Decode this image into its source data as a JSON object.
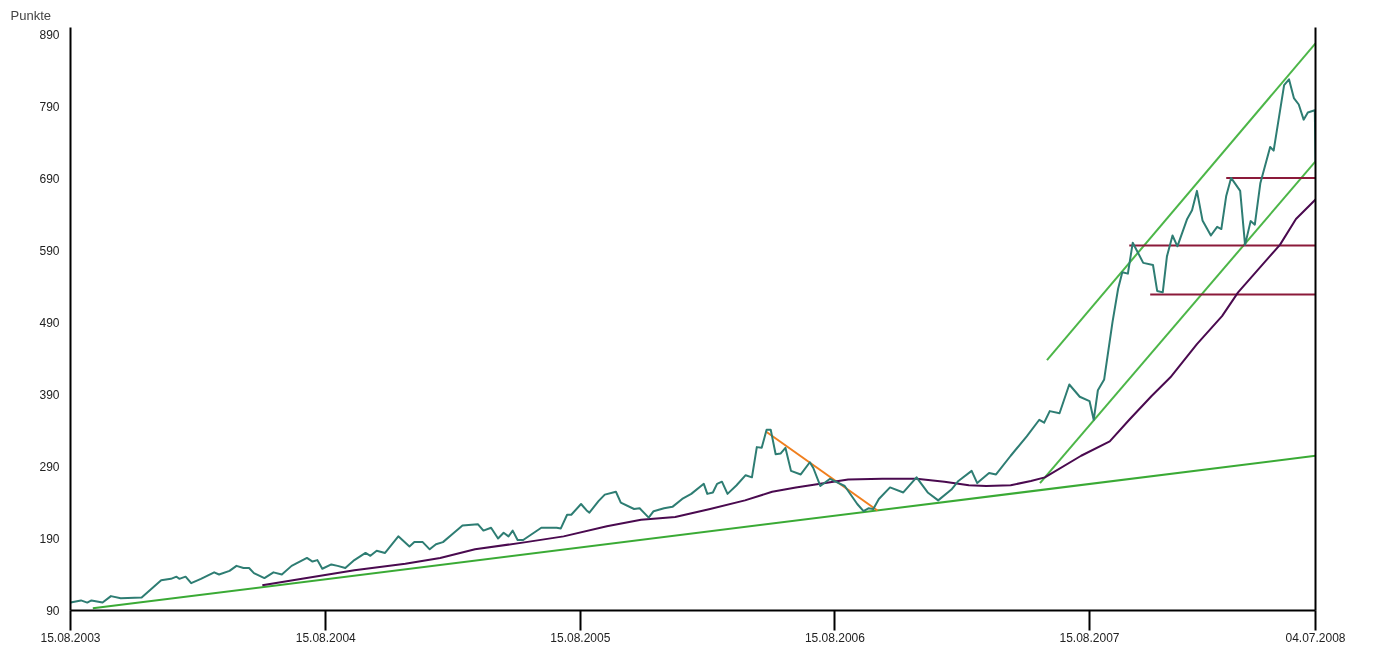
{
  "chart_data": {
    "type": "line",
    "ylabel": "Punkte",
    "xlim": [
      "2003-08-15",
      "2008-07-04"
    ],
    "ylim": [
      90,
      900
    ],
    "xticks": [
      {
        "value": "2003-08-15",
        "label": "15.08.2003"
      },
      {
        "value": "2004-08-15",
        "label": "15.08.2004"
      },
      {
        "value": "2005-08-15",
        "label": "15.08.2005"
      },
      {
        "value": "2006-08-15",
        "label": "15.08.2006"
      },
      {
        "value": "2007-08-15",
        "label": "15.08.2007"
      },
      {
        "value": "2008-07-04",
        "label": "04.07.2008"
      }
    ],
    "yticks": [
      90,
      190,
      290,
      390,
      490,
      590,
      690,
      790,
      890
    ],
    "grid": false,
    "marker": "none",
    "line_style": "solid",
    "series": [
      {
        "color": "#3aaa35",
        "x": [
          "2003-09-16",
          "2008-07-04"
        ],
        "values": [
          93,
          305
        ]
      },
      {
        "color": "#4cb648",
        "x": [
          "2007-06-15",
          "2008-07-04"
        ],
        "values": [
          438,
          878
        ]
      },
      {
        "color": "#4cb648",
        "x": [
          "2007-06-05",
          "2008-07-04"
        ],
        "values": [
          267,
          714
        ]
      },
      {
        "color": "#f07f1e",
        "x": [
          "2006-05-09",
          "2006-10-15"
        ],
        "values": [
          338,
          229
        ]
      },
      {
        "color": "#8b1a3a",
        "x": [
          "2008-02-27",
          "2008-07-04"
        ],
        "values": [
          691,
          691
        ]
      },
      {
        "color": "#8b1a3a",
        "x": [
          "2007-10-11",
          "2008-07-04"
        ],
        "values": [
          597,
          597
        ]
      },
      {
        "color": "#8b1a3a",
        "x": [
          "2007-11-10",
          "2008-07-04"
        ],
        "values": [
          529,
          529
        ]
      },
      {
        "color": "#4a0a4f",
        "x": [
          "2004-05-16",
          "2004-07-12",
          "2004-09-25",
          "2004-12-07",
          "2005-01-26",
          "2005-03-17",
          "2005-05-29",
          "2005-07-22",
          "2005-09-22",
          "2005-11-10",
          "2005-12-29",
          "2006-02-17",
          "2006-04-08",
          "2006-05-17",
          "2006-06-20",
          "2006-07-25",
          "2006-09-03",
          "2006-10-22",
          "2006-12-10",
          "2007-01-19",
          "2007-02-23",
          "2007-03-20",
          "2007-04-24",
          "2007-05-23",
          "2007-06-12",
          "2007-08-03",
          "2007-09-13",
          "2007-10-11",
          "2007-11-12",
          "2007-12-09",
          "2008-01-16",
          "2008-02-21",
          "2008-03-15",
          "2008-04-12",
          "2008-05-14",
          "2008-06-06",
          "2008-07-04"
        ],
        "values": [
          125,
          134,
          146,
          155,
          163,
          175,
          185,
          193,
          207,
          216,
          220,
          231,
          243,
          255,
          261,
          266,
          272,
          273,
          273,
          269,
          264,
          263,
          264,
          270,
          275,
          305,
          325,
          355,
          388,
          414,
          460,
          499,
          532,
          563,
          598,
          634,
          661
        ]
      },
      {
        "color": "#2e7d73",
        "x": [
          "2003-08-15",
          "2003-08-30",
          "2003-09-08",
          "2003-09-14",
          "2003-09-30",
          "2003-10-12",
          "2003-10-26",
          "2003-11-25",
          "2003-12-23",
          "2004-01-06",
          "2004-01-14",
          "2004-01-18",
          "2004-01-27",
          "2004-02-04",
          "2004-02-18",
          "2004-03-08",
          "2004-03-15",
          "2004-03-30",
          "2004-04-09",
          "2004-04-19",
          "2004-04-27",
          "2004-05-04",
          "2004-05-19",
          "2004-06-01",
          "2004-06-13",
          "2004-06-27",
          "2004-07-19",
          "2004-07-27",
          "2004-08-03",
          "2004-08-10",
          "2004-08-23",
          "2004-09-01",
          "2004-09-12",
          "2004-09-25",
          "2004-10-11",
          "2004-10-18",
          "2004-10-27",
          "2004-11-08",
          "2004-11-27",
          "2004-12-13",
          "2004-12-20",
          "2005-01-01",
          "2005-01-11",
          "2005-01-20",
          "2005-01-30",
          "2005-02-11",
          "2005-02-27",
          "2005-03-21",
          "2005-03-29",
          "2005-04-09",
          "2005-04-19",
          "2005-04-27",
          "2005-05-04",
          "2005-05-10",
          "2005-05-17",
          "2005-05-25",
          "2005-06-20",
          "2005-07-12",
          "2005-07-18",
          "2005-07-27",
          "2005-08-02",
          "2005-08-16",
          "2005-08-24",
          "2005-08-28",
          "2005-09-10",
          "2005-09-19",
          "2005-10-05",
          "2005-10-12",
          "2005-10-31",
          "2005-11-08",
          "2005-11-21",
          "2005-11-28",
          "2005-12-13",
          "2005-12-25",
          "2006-01-08",
          "2006-01-21",
          "2006-02-08",
          "2006-02-13",
          "2006-02-21",
          "2006-02-27",
          "2006-03-06",
          "2006-03-14",
          "2006-03-27",
          "2006-04-09",
          "2006-04-18",
          "2006-04-25",
          "2006-05-02",
          "2006-05-09",
          "2006-05-15",
          "2006-05-22",
          "2006-05-29",
          "2006-06-05",
          "2006-06-13",
          "2006-06-27",
          "2006-07-10",
          "2006-07-15",
          "2006-07-25",
          "2006-08-08",
          "2006-08-16",
          "2006-08-29",
          "2006-09-16",
          "2006-09-25",
          "2006-10-02",
          "2006-10-09",
          "2006-10-17",
          "2006-11-02",
          "2006-11-21",
          "2006-12-10",
          "2006-12-26",
          "2007-01-10",
          "2007-01-29",
          "2007-02-08",
          "2007-02-27",
          "2007-03-07",
          "2007-03-24",
          "2007-04-03",
          "2007-04-24",
          "2007-05-17",
          "2007-06-04",
          "2007-06-11",
          "2007-06-19",
          "2007-07-03",
          "2007-07-17",
          "2007-08-01",
          "2007-08-15",
          "2007-08-21",
          "2007-08-27",
          "2007-09-05",
          "2007-09-17",
          "2007-09-25",
          "2007-10-01",
          "2007-10-09",
          "2007-10-16",
          "2007-10-31",
          "2007-11-14",
          "2007-11-20",
          "2007-11-28",
          "2007-12-04",
          "2007-12-12",
          "2007-12-19",
          "2008-01-02",
          "2008-01-09",
          "2008-01-16",
          "2008-01-24",
          "2008-02-05",
          "2008-02-14",
          "2008-02-20",
          "2008-02-27",
          "2008-03-05",
          "2008-03-18",
          "2008-03-25",
          "2008-04-02",
          "2008-04-08",
          "2008-04-16",
          "2008-04-30",
          "2008-05-05",
          "2008-05-20",
          "2008-05-27",
          "2008-06-03",
          "2008-06-10",
          "2008-06-17",
          "2008-06-23",
          "2008-07-03",
          "2008-07-04"
        ],
        "values": [
          101,
          104,
          101,
          104,
          101,
          110,
          107,
          108,
          132,
          134,
          137,
          134,
          137,
          128,
          134,
          143,
          140,
          145,
          152,
          149,
          149,
          142,
          135,
          143,
          140,
          152,
          163,
          158,
          160,
          148,
          154,
          152,
          149,
          160,
          170,
          166,
          173,
          170,
          193,
          179,
          185,
          185,
          175,
          182,
          185,
          195,
          208,
          210,
          201,
          205,
          190,
          198,
          193,
          201,
          188,
          188,
          205,
          205,
          204,
          223,
          223,
          238,
          229,
          226,
          242,
          251,
          255,
          240,
          231,
          232,
          219,
          228,
          232,
          234,
          245,
          252,
          266,
          252,
          254,
          266,
          269,
          252,
          264,
          278,
          275,
          317,
          316,
          341,
          341,
          307,
          308,
          316,
          284,
          279,
          296,
          288,
          263,
          273,
          269,
          263,
          238,
          228,
          232,
          231,
          245,
          261,
          254,
          275,
          254,
          243,
          258,
          270,
          284,
          267,
          281,
          279,
          305,
          332,
          355,
          351,
          367,
          364,
          404,
          387,
          381,
          355,
          396,
          411,
          491,
          537,
          560,
          558,
          601,
          573,
          570,
          534,
          532,
          582,
          611,
          596,
          634,
          646,
          673,
          632,
          611,
          623,
          620,
          666,
          691,
          673,
          598,
          631,
          626,
          684,
          734,
          729,
          820,
          828,
          802,
          793,
          772,
          782,
          785,
          714
        ]
      }
    ]
  }
}
